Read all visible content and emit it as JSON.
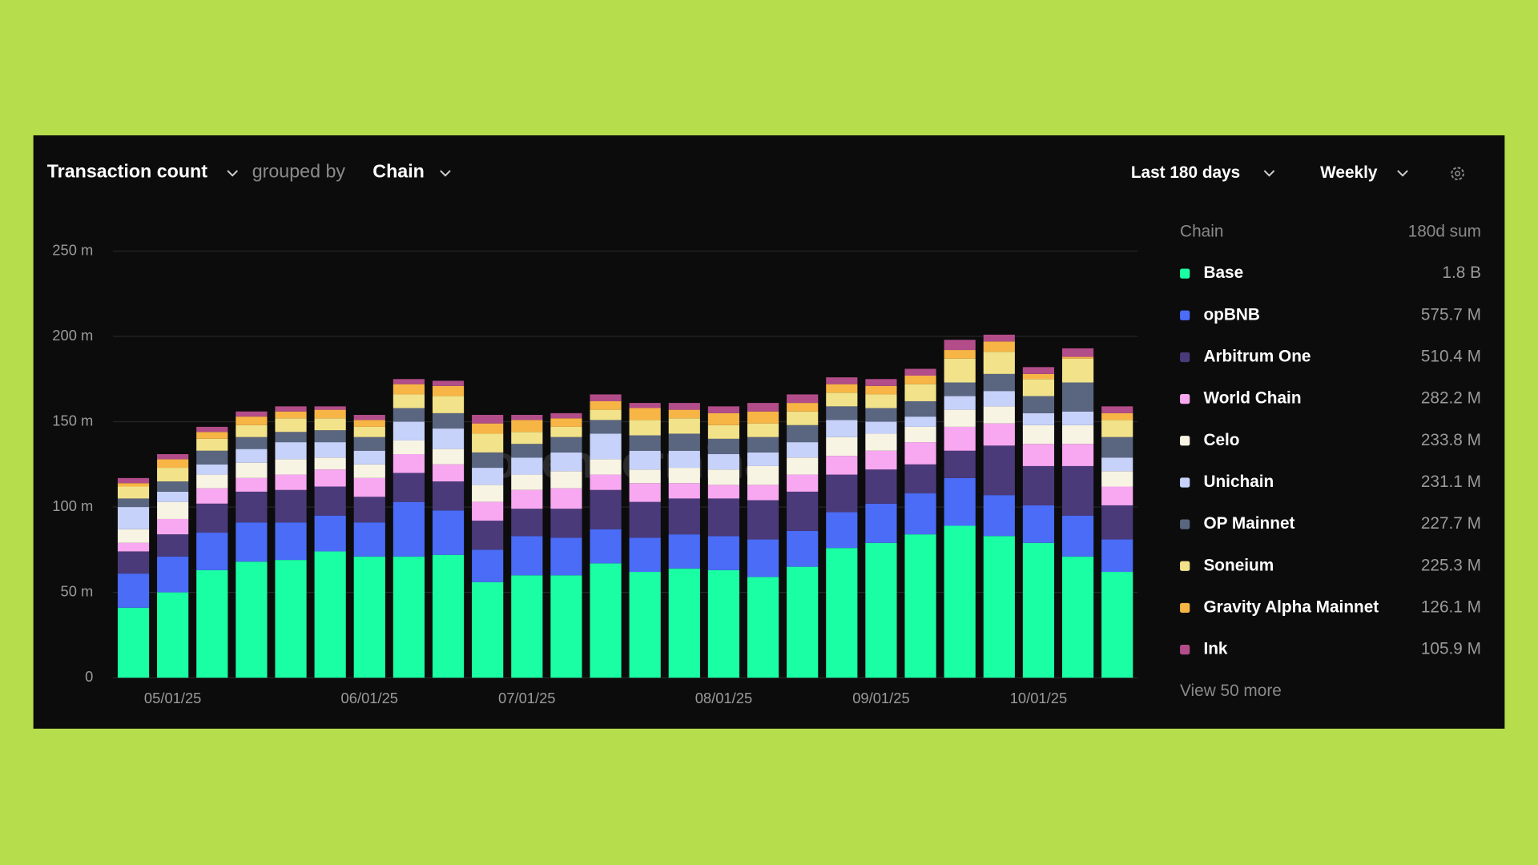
{
  "header": {
    "metric": "Transaction count",
    "grouped_by": "grouped by",
    "group": "Chain",
    "range": "Last 180 days",
    "interval": "Weekly"
  },
  "chart_data": {
    "type": "bar",
    "stacked": true,
    "watermark": "token terminal",
    "categories": [
      null,
      "05/01/25",
      null,
      null,
      null,
      null,
      "06/01/25",
      null,
      null,
      null,
      "07/01/25",
      null,
      null,
      null,
      null,
      "08/01/25",
      null,
      null,
      null,
      "09/01/25",
      null,
      null,
      null,
      "10/01/25",
      null,
      null
    ],
    "series": [
      {
        "name": "Base",
        "color": "#1affa3",
        "sum": "1.8 B",
        "values": [
          41,
          50,
          63,
          68,
          69,
          74,
          71,
          71,
          72,
          56,
          60,
          60,
          67,
          62,
          64,
          63,
          59,
          65,
          76,
          79,
          84,
          89,
          83,
          79,
          71,
          62
        ]
      },
      {
        "name": "opBNB",
        "color": "#4a6cf7",
        "sum": "575.7 M",
        "values": [
          20,
          21,
          22,
          23,
          22,
          21,
          20,
          32,
          26,
          19,
          23,
          22,
          20,
          20,
          20,
          20,
          22,
          21,
          21,
          23,
          24,
          28,
          24,
          22,
          24,
          19
        ]
      },
      {
        "name": "Arbitrum One",
        "color": "#4b3a7a",
        "sum": "510.4 M",
        "values": [
          13,
          13,
          17,
          18,
          19,
          17,
          15,
          17,
          17,
          17,
          16,
          17,
          23,
          21,
          21,
          22,
          23,
          23,
          22,
          20,
          17,
          16,
          29,
          23,
          29,
          20
        ]
      },
      {
        "name": "World Chain",
        "color": "#f7a8f0",
        "sum": "282.2 M",
        "values": [
          5,
          9,
          9,
          8,
          9,
          10,
          11,
          11,
          10,
          11,
          11,
          12,
          9,
          11,
          9,
          8,
          9,
          10,
          11,
          11,
          13,
          14,
          13,
          13,
          13,
          11
        ]
      },
      {
        "name": "Celo",
        "color": "#f8f4e3",
        "sum": "233.8 M",
        "values": [
          8,
          10,
          8,
          9,
          9,
          7,
          8,
          8,
          9,
          10,
          9,
          10,
          9,
          8,
          9,
          9,
          11,
          10,
          11,
          10,
          9,
          10,
          10,
          11,
          11,
          9
        ]
      },
      {
        "name": "Unichain",
        "color": "#c7d2fb",
        "sum": "231.1 M",
        "values": [
          13,
          6,
          6,
          8,
          10,
          9,
          8,
          11,
          12,
          10,
          10,
          11,
          15,
          11,
          10,
          9,
          8,
          9,
          10,
          7,
          6,
          8,
          9,
          7,
          8,
          8
        ]
      },
      {
        "name": "OP Mainnet",
        "color": "#5a6680",
        "sum": "227.7 M",
        "values": [
          5,
          6,
          8,
          7,
          6,
          7,
          8,
          8,
          9,
          9,
          8,
          9,
          8,
          9,
          10,
          9,
          9,
          10,
          8,
          8,
          9,
          8,
          10,
          10,
          17,
          12
        ]
      },
      {
        "name": "Soneium",
        "color": "#f2e38a",
        "sum": "225.3 M",
        "values": [
          7,
          8,
          7,
          7,
          8,
          7,
          6,
          8,
          10,
          11,
          7,
          6,
          6,
          9,
          9,
          8,
          8,
          8,
          8,
          8,
          10,
          14,
          13,
          10,
          14,
          10
        ]
      },
      {
        "name": "Gravity Alpha Mainnet",
        "color": "#f7b545",
        "sum": "126.1 M",
        "values": [
          2,
          5,
          4,
          5,
          4,
          5,
          4,
          6,
          6,
          6,
          7,
          5,
          5,
          7,
          5,
          7,
          7,
          5,
          5,
          5,
          5,
          5,
          6,
          3,
          1,
          4
        ]
      },
      {
        "name": "Ink",
        "color": "#b34d8a",
        "sum": "105.9 M",
        "values": [
          3,
          3,
          3,
          3,
          3,
          2,
          3,
          3,
          3,
          5,
          3,
          3,
          4,
          3,
          4,
          4,
          5,
          5,
          4,
          4,
          4,
          6,
          4,
          4,
          5,
          4
        ]
      }
    ],
    "ylim": [
      0,
      250
    ],
    "yticks": [
      0,
      {
        "value": 50,
        "label": "50 m"
      },
      {
        "value": 100,
        "label": "100 m"
      },
      {
        "value": 150,
        "label": "150 m"
      },
      {
        "value": 200,
        "label": "200 m"
      },
      {
        "value": 250,
        "label": "250 m"
      }
    ],
    "grid": true,
    "legend": {
      "title": "Chain",
      "sum_title": "180d sum",
      "more": "View 50 more"
    }
  }
}
